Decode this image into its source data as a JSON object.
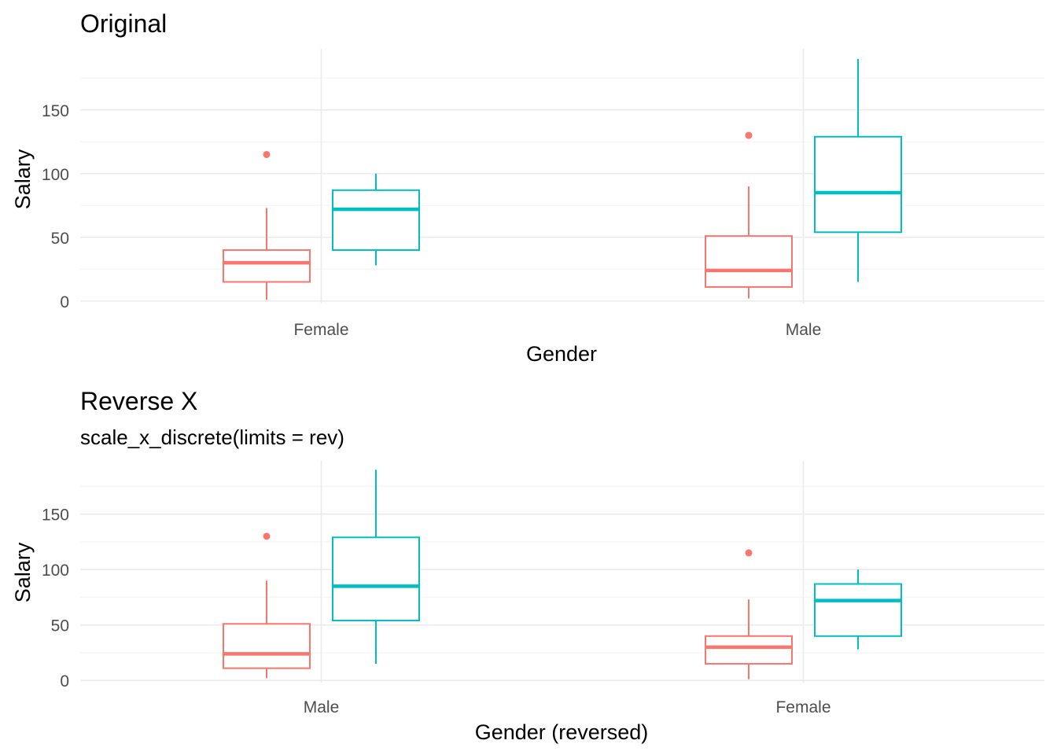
{
  "palette": {
    "series_a": "#F8766D",
    "series_b": "#00BFC4",
    "grid_major": "#EBEBEB",
    "grid_minor": "#F5F5F5",
    "tick_text": "#4D4D4D",
    "title_text": "#000000"
  },
  "chart_data": [
    {
      "type": "boxplot",
      "title": "Original",
      "subtitle": "",
      "xlabel": "Gender",
      "ylabel": "Salary",
      "categories": [
        "Female",
        "Male"
      ],
      "yticks": [
        0,
        50,
        100,
        150
      ],
      "ylim": [
        -2,
        198
      ],
      "grid": true,
      "legend": "none",
      "series": [
        {
          "color": "series_a",
          "boxes": [
            {
              "category": "Female",
              "min": 1,
              "q1": 15,
              "median": 30,
              "q3": 40,
              "max": 73,
              "outliers": [
                115
              ]
            },
            {
              "category": "Male",
              "min": 2,
              "q1": 11,
              "median": 24,
              "q3": 51,
              "max": 90,
              "outliers": [
                130
              ]
            }
          ]
        },
        {
          "color": "series_b",
          "boxes": [
            {
              "category": "Female",
              "min": 28,
              "q1": 40,
              "median": 72,
              "q3": 87,
              "max": 100,
              "outliers": []
            },
            {
              "category": "Male",
              "min": 15,
              "q1": 54,
              "median": 85,
              "q3": 129,
              "max": 190,
              "outliers": []
            }
          ]
        }
      ]
    },
    {
      "type": "boxplot",
      "title": "Reverse X",
      "subtitle": "scale_x_discrete(limits = rev)",
      "xlabel": "Gender (reversed)",
      "ylabel": "Salary",
      "categories": [
        "Male",
        "Female"
      ],
      "yticks": [
        0,
        50,
        100,
        150
      ],
      "ylim": [
        -2,
        198
      ],
      "grid": true,
      "legend": "none",
      "series": [
        {
          "color": "series_a",
          "boxes": [
            {
              "category": "Male",
              "min": 2,
              "q1": 11,
              "median": 24,
              "q3": 51,
              "max": 90,
              "outliers": [
                130
              ]
            },
            {
              "category": "Female",
              "min": 1,
              "q1": 15,
              "median": 30,
              "q3": 40,
              "max": 73,
              "outliers": [
                115
              ]
            }
          ]
        },
        {
          "color": "series_b",
          "boxes": [
            {
              "category": "Male",
              "min": 15,
              "q1": 54,
              "median": 85,
              "q3": 129,
              "max": 190,
              "outliers": []
            },
            {
              "category": "Female",
              "min": 28,
              "q1": 40,
              "median": 72,
              "q3": 87,
              "max": 100,
              "outliers": []
            }
          ]
        }
      ]
    }
  ]
}
